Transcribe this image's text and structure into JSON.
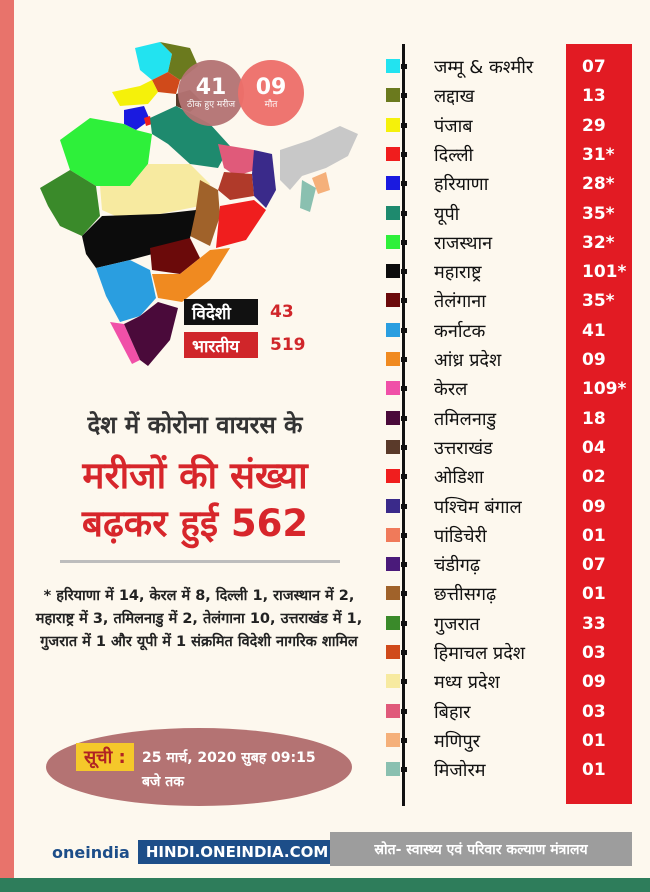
{
  "summary": {
    "recovered": {
      "value": "41",
      "label": "ठीक हुए मरीज"
    },
    "deaths": {
      "value": "09",
      "label": "मौत"
    }
  },
  "map_legend": {
    "foreign": {
      "label": "विदेशी",
      "value": "43"
    },
    "indian": {
      "label": "भारतीय",
      "value": "519"
    }
  },
  "headline": {
    "line1": "देश में कोरोना वायरस के",
    "line2": "मरीजों की संख्या",
    "line3": "बढ़कर हुई 562"
  },
  "note": "* हरियाणा में 14, केरल में 8, दिल्ली 1, राजस्थान में 2, महाराष्ट्र में 3, तमिलनाडु में 2, तेलंगाना 10, उत्तराखंड में 1, गुजरात में 1 और यूपी में 1 संक्रमित विदेशी नागरिक शामिल",
  "date": {
    "label": "सूची :",
    "text": "25 मार्च, 2020 सुबह 09:15 बजे तक"
  },
  "brand": {
    "logo": "oneindia",
    "url": "HINDI.ONEINDIA.COM"
  },
  "source": "स्रोत- स्वास्थ्य एवं परिवार कल्याण मंत्रालय",
  "states": [
    {
      "name": "जम्मू & कश्मीर",
      "value": "07",
      "color": "#22e3f0"
    },
    {
      "name": "लद्दाख",
      "value": "13",
      "color": "#6b7a1e"
    },
    {
      "name": "पंजाब",
      "value": "29",
      "color": "#f5f10a"
    },
    {
      "name": "दिल्ली",
      "value": "31*",
      "color": "#f01d1d"
    },
    {
      "name": "हरियाणा",
      "value": "28*",
      "color": "#1a1ae0"
    },
    {
      "name": "यूपी",
      "value": "35*",
      "color": "#1e8a6e"
    },
    {
      "name": "राजस्थान",
      "value": "32*",
      "color": "#2ef03a"
    },
    {
      "name": "महाराष्ट्र",
      "value": "101*",
      "color": "#0c0c0c"
    },
    {
      "name": "तेलंगाना",
      "value": "35*",
      "color": "#6b0a0a"
    },
    {
      "name": "कर्नाटक",
      "value": "41",
      "color": "#2a9ee0"
    },
    {
      "name": "आंध्र प्रदेश",
      "value": "09",
      "color": "#f08a20"
    },
    {
      "name": "केरल",
      "value": "109*",
      "color": "#f050a8"
    },
    {
      "name": "तमिलनाडु",
      "value": "18",
      "color": "#4a0a3a"
    },
    {
      "name": "उत्तराखंड",
      "value": "04",
      "color": "#5a3a2a"
    },
    {
      "name": "ओडिशा",
      "value": "02",
      "color": "#f01e1e"
    },
    {
      "name": "पश्चिम बंगाल",
      "value": "09",
      "color": "#3a2a8a"
    },
    {
      "name": "पांडिचेरी",
      "value": "01",
      "color": "#f07a5a"
    },
    {
      "name": "चंडीगढ़",
      "value": "07",
      "color": "#4a1a7a"
    },
    {
      "name": "छत्तीसगढ़",
      "value": "01",
      "color": "#a0622a"
    },
    {
      "name": "गुजरात",
      "value": "33",
      "color": "#3a8a2a"
    },
    {
      "name": "हिमाचल प्रदेश",
      "value": "03",
      "color": "#d04a1a"
    },
    {
      "name": "मध्य प्रदेश",
      "value": "09",
      "color": "#f7eaa0"
    },
    {
      "name": "बिहार",
      "value": "03",
      "color": "#e05a7a"
    },
    {
      "name": "मणिपुर",
      "value": "01",
      "color": "#f5b07a"
    },
    {
      "name": "मिजोरम",
      "value": "01",
      "color": "#8ac0b0"
    }
  ]
}
